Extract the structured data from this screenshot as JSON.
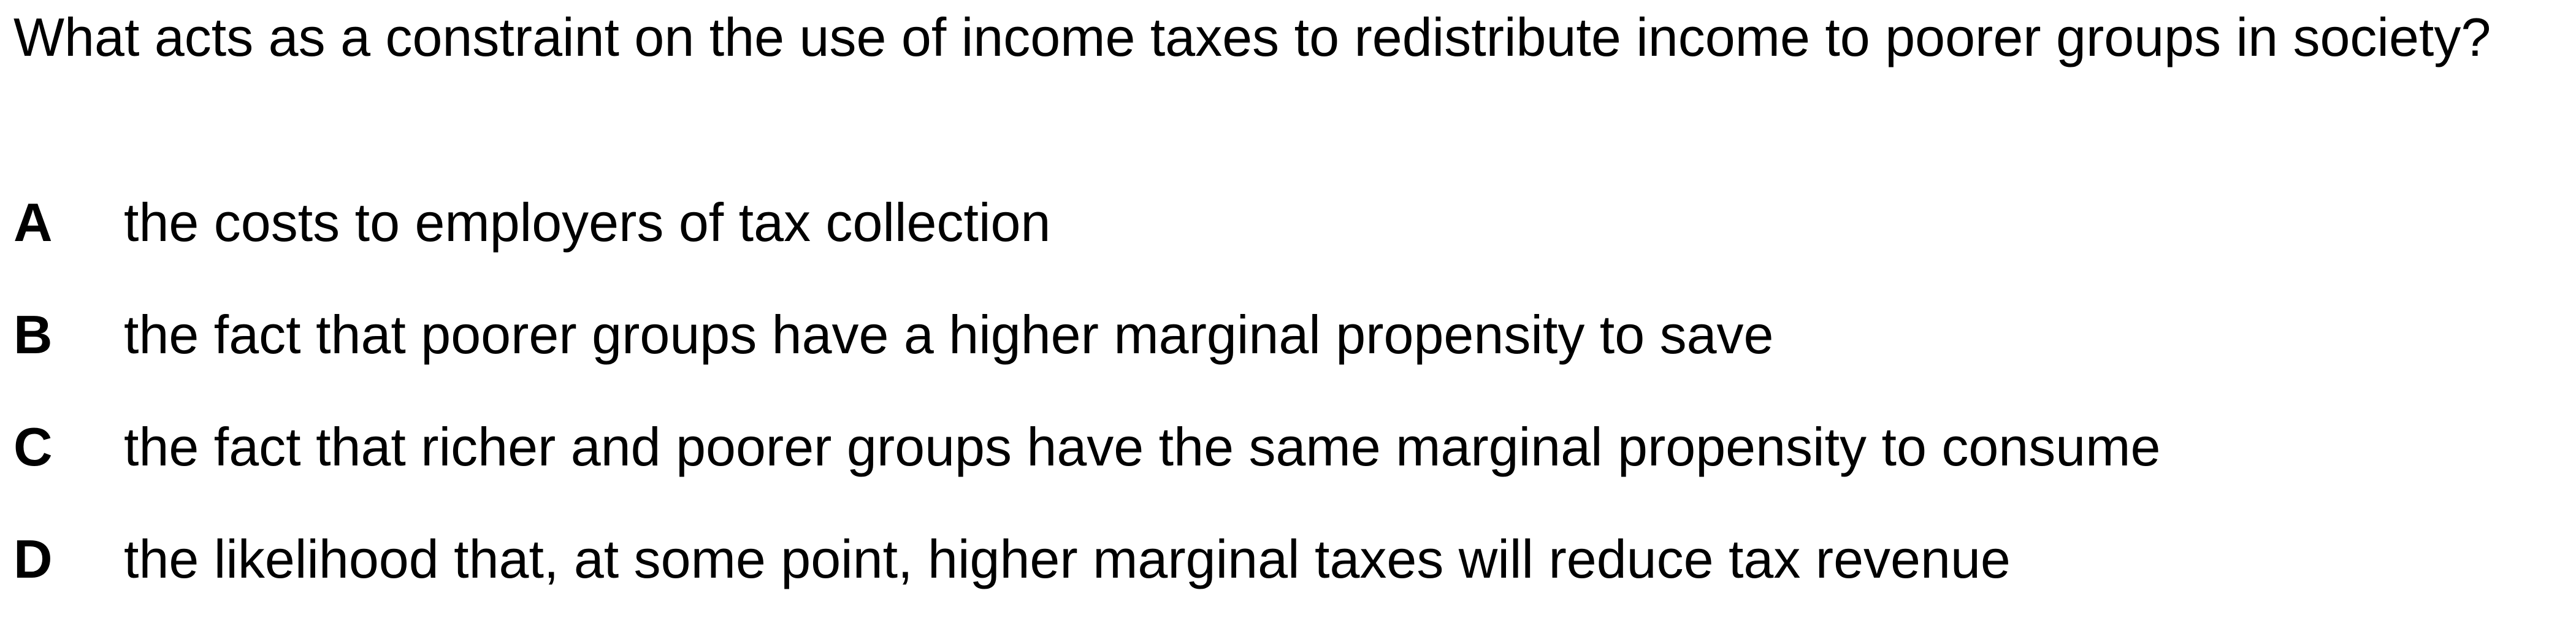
{
  "question": {
    "text": "What acts as a constraint on the use of income taxes to redistribute income to poorer groups in society?"
  },
  "options": [
    {
      "letter": "A",
      "text": "the costs to employers of tax collection"
    },
    {
      "letter": "B",
      "text": "the fact that poorer groups have a higher marginal propensity to save"
    },
    {
      "letter": "C",
      "text": "the fact that richer and poorer groups have the same marginal propensity to consume"
    },
    {
      "letter": "D",
      "text": "the likelihood that, at some point, higher marginal taxes will reduce tax revenue"
    }
  ]
}
